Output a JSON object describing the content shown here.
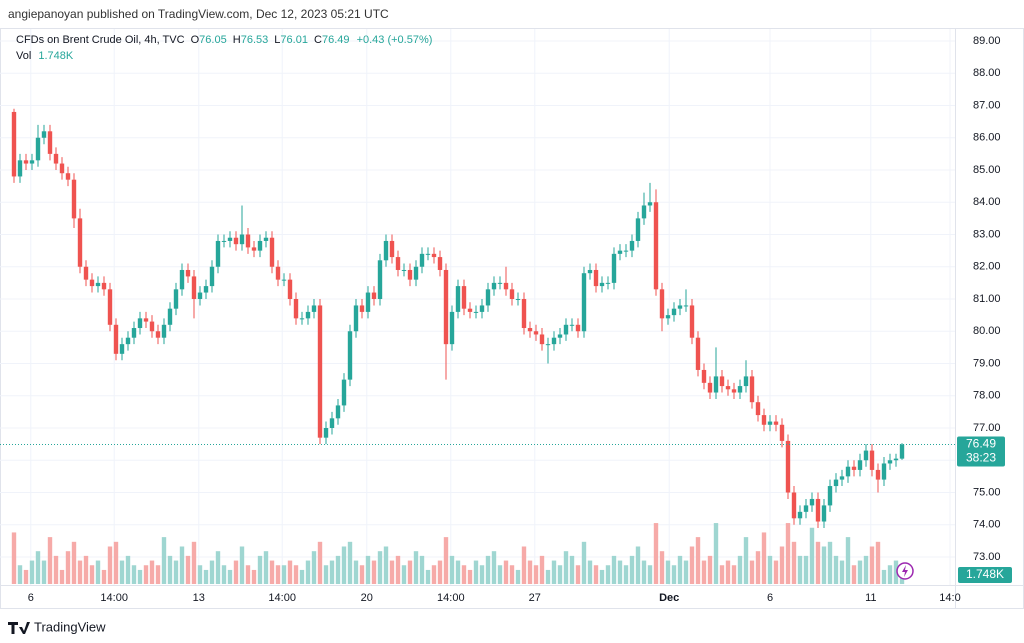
{
  "header": "angiepanoyan published on TradingView.com, Dec 12, 2023 05:21 UTC",
  "footer": "TradingView",
  "chart_data": {
    "type": "candlestick",
    "symbol": "CFDs on Brent Crude Oil, 4h, TVC",
    "legend": [
      "O",
      "76.05",
      "H",
      "76.53",
      "L",
      "76.01",
      "C",
      "76.49",
      "+0.43 (+0.57%)"
    ],
    "volume_legend": [
      "Vol",
      "1.748K"
    ],
    "last_price_label": "76.49",
    "countdown": "38:23",
    "last_volume_label": "1.748K",
    "up_color": "#26a69a",
    "down_color": "#ef5350",
    "volume_up_color": "#9fd6d1",
    "volume_down_color": "#f6aaa8",
    "grid": true,
    "ylim": [
      73,
      89
    ],
    "yticks": [
      {
        "value": 73,
        "label": "73.00"
      },
      {
        "value": 74,
        "label": "74.00"
      },
      {
        "value": 75,
        "label": "75.00"
      },
      {
        "value": 76,
        "label": "76.00"
      },
      {
        "value": 77,
        "label": "77.00"
      },
      {
        "value": 78,
        "label": "78.00"
      },
      {
        "value": 79,
        "label": "79.00"
      },
      {
        "value": 80,
        "label": "80.00"
      },
      {
        "value": 81,
        "label": "81.00"
      },
      {
        "value": 82,
        "label": "82.00"
      },
      {
        "value": 83,
        "label": "83.00"
      },
      {
        "value": 84,
        "label": "84.00"
      },
      {
        "value": 85,
        "label": "85.00"
      },
      {
        "value": 86,
        "label": "86.00"
      },
      {
        "value": 87,
        "label": "87.00"
      },
      {
        "value": 88,
        "label": "88.00"
      },
      {
        "value": 89,
        "label": "89.00"
      }
    ],
    "xticks": [
      {
        "value": 2.8,
        "label": "6"
      },
      {
        "value": 16.7,
        "label": "14:00"
      },
      {
        "value": 30.8,
        "label": "13"
      },
      {
        "value": 44.7,
        "label": "14:00"
      },
      {
        "value": 58.8,
        "label": "20"
      },
      {
        "value": 72.8,
        "label": "14:00"
      },
      {
        "value": 86.8,
        "label": "27"
      },
      {
        "value": 109.2,
        "label": "Dec"
      },
      {
        "value": 126,
        "label": "6"
      },
      {
        "value": 142.8,
        "label": "11"
      },
      {
        "value": 156,
        "label": "14:0"
      }
    ],
    "volume_lim": [
      0,
      16
    ],
    "ohlc": [
      [
        86.8,
        86.9,
        84.6,
        84.8
      ],
      [
        84.8,
        85.5,
        84.6,
        85.3
      ],
      [
        85.3,
        85.5,
        85.0,
        85.2
      ],
      [
        85.2,
        85.5,
        85.0,
        85.3
      ],
      [
        85.3,
        86.4,
        85.1,
        86.0
      ],
      [
        86.0,
        86.4,
        85.8,
        86.2
      ],
      [
        86.2,
        86.4,
        85.3,
        85.5
      ],
      [
        85.5,
        85.7,
        85.0,
        85.2
      ],
      [
        85.2,
        85.4,
        84.7,
        84.9
      ],
      [
        84.9,
        85.1,
        84.5,
        84.7
      ],
      [
        84.7,
        84.9,
        83.2,
        83.5
      ],
      [
        83.5,
        83.8,
        81.8,
        82.0
      ],
      [
        82.0,
        82.2,
        81.4,
        81.6
      ],
      [
        81.6,
        81.8,
        81.2,
        81.4
      ],
      [
        81.4,
        81.7,
        81.2,
        81.5
      ],
      [
        81.5,
        81.7,
        81.1,
        81.3
      ],
      [
        81.3,
        81.5,
        80.0,
        80.2
      ],
      [
        80.2,
        80.4,
        79.1,
        79.3
      ],
      [
        79.3,
        79.8,
        79.1,
        79.6
      ],
      [
        79.6,
        80.0,
        79.4,
        79.8
      ],
      [
        79.8,
        80.3,
        79.6,
        80.1
      ],
      [
        80.1,
        80.6,
        79.9,
        80.4
      ],
      [
        80.4,
        80.6,
        80.1,
        80.3
      ],
      [
        80.3,
        80.5,
        79.8,
        80.0
      ],
      [
        80.0,
        80.2,
        79.6,
        79.8
      ],
      [
        79.8,
        80.4,
        79.6,
        80.2
      ],
      [
        80.2,
        80.9,
        80.0,
        80.7
      ],
      [
        80.7,
        81.5,
        80.5,
        81.3
      ],
      [
        81.3,
        82.1,
        81.1,
        81.9
      ],
      [
        81.9,
        82.1,
        81.5,
        81.7
      ],
      [
        81.7,
        81.9,
        80.4,
        81.0
      ],
      [
        81.0,
        81.4,
        80.8,
        81.2
      ],
      [
        81.2,
        81.6,
        81.0,
        81.4
      ],
      [
        81.4,
        82.2,
        81.2,
        82.0
      ],
      [
        82.0,
        83.0,
        81.8,
        82.8
      ],
      [
        82.8,
        83.0,
        82.6,
        82.8
      ],
      [
        82.8,
        83.1,
        82.6,
        82.9
      ],
      [
        82.9,
        83.1,
        82.5,
        82.7
      ],
      [
        82.7,
        83.9,
        82.5,
        83.0
      ],
      [
        83.0,
        83.2,
        82.4,
        82.6
      ],
      [
        82.6,
        82.8,
        82.3,
        82.5
      ],
      [
        82.5,
        83.0,
        82.3,
        82.8
      ],
      [
        82.8,
        83.1,
        82.6,
        82.9
      ],
      [
        82.9,
        83.1,
        81.8,
        82.0
      ],
      [
        82.0,
        82.2,
        81.4,
        81.6
      ],
      [
        81.6,
        81.8,
        81.4,
        81.6
      ],
      [
        81.6,
        81.8,
        80.8,
        81.0
      ],
      [
        81.0,
        81.2,
        80.2,
        80.4
      ],
      [
        80.4,
        80.6,
        80.2,
        80.4
      ],
      [
        80.4,
        80.8,
        80.2,
        80.6
      ],
      [
        80.6,
        81.0,
        80.4,
        80.8
      ],
      [
        80.8,
        81.0,
        76.5,
        76.7
      ],
      [
        76.7,
        77.2,
        76.5,
        77.0
      ],
      [
        77.0,
        77.5,
        76.8,
        77.3
      ],
      [
        77.3,
        77.9,
        77.1,
        77.7
      ],
      [
        77.7,
        78.7,
        77.5,
        78.5
      ],
      [
        78.5,
        80.2,
        78.3,
        80.0
      ],
      [
        80.0,
        81.0,
        79.8,
        80.8
      ],
      [
        80.8,
        81.0,
        80.4,
        80.6
      ],
      [
        80.6,
        81.4,
        80.4,
        81.2
      ],
      [
        81.2,
        81.4,
        80.8,
        81.0
      ],
      [
        81.0,
        82.4,
        80.8,
        82.2
      ],
      [
        82.2,
        83.0,
        82.0,
        82.8
      ],
      [
        82.8,
        83.0,
        82.1,
        82.3
      ],
      [
        82.3,
        82.5,
        81.7,
        81.9
      ],
      [
        81.9,
        82.1,
        81.7,
        81.9
      ],
      [
        81.9,
        82.1,
        81.4,
        81.6
      ],
      [
        81.6,
        82.2,
        81.4,
        82.0
      ],
      [
        82.0,
        82.6,
        81.8,
        82.4
      ],
      [
        82.4,
        82.6,
        82.2,
        82.4
      ],
      [
        82.4,
        82.6,
        82.1,
        82.3
      ],
      [
        82.3,
        82.5,
        81.7,
        81.9
      ],
      [
        81.9,
        82.1,
        78.5,
        79.6
      ],
      [
        79.6,
        80.8,
        79.4,
        80.6
      ],
      [
        80.6,
        81.6,
        80.4,
        81.4
      ],
      [
        81.4,
        81.6,
        80.5,
        80.7
      ],
      [
        80.7,
        80.9,
        80.4,
        80.6
      ],
      [
        80.6,
        80.8,
        80.4,
        80.6
      ],
      [
        80.6,
        81.0,
        80.4,
        80.8
      ],
      [
        80.8,
        81.5,
        80.6,
        81.3
      ],
      [
        81.3,
        81.7,
        81.1,
        81.5
      ],
      [
        81.5,
        81.7,
        81.3,
        81.5
      ],
      [
        81.5,
        82.0,
        81.1,
        81.3
      ],
      [
        81.3,
        81.5,
        80.8,
        81.0
      ],
      [
        81.0,
        81.2,
        80.8,
        81.0
      ],
      [
        81.0,
        81.2,
        79.9,
        80.1
      ],
      [
        80.1,
        80.3,
        79.8,
        80.0
      ],
      [
        80.0,
        80.2,
        79.7,
        79.9
      ],
      [
        79.9,
        80.1,
        79.4,
        79.6
      ],
      [
        79.6,
        79.8,
        79.0,
        79.6
      ],
      [
        79.6,
        80.0,
        79.4,
        79.8
      ],
      [
        79.8,
        80.1,
        79.6,
        79.9
      ],
      [
        79.9,
        80.4,
        79.7,
        80.2
      ],
      [
        80.2,
        80.4,
        80.0,
        80.2
      ],
      [
        80.2,
        80.4,
        79.8,
        80.0
      ],
      [
        80.0,
        82.0,
        79.8,
        81.8
      ],
      [
        81.8,
        82.1,
        81.6,
        81.9
      ],
      [
        81.9,
        82.1,
        81.2,
        81.4
      ],
      [
        81.4,
        81.7,
        81.2,
        81.5
      ],
      [
        81.5,
        81.7,
        81.3,
        81.5
      ],
      [
        81.5,
        82.6,
        81.3,
        82.4
      ],
      [
        82.4,
        82.7,
        82.2,
        82.5
      ],
      [
        82.5,
        82.7,
        82.3,
        82.5
      ],
      [
        82.5,
        83.0,
        82.3,
        82.8
      ],
      [
        82.8,
        83.7,
        82.6,
        83.5
      ],
      [
        83.5,
        84.3,
        83.3,
        83.9
      ],
      [
        83.9,
        84.6,
        83.7,
        84.0
      ],
      [
        84.0,
        84.4,
        81.1,
        81.3
      ],
      [
        81.3,
        81.5,
        80.0,
        80.4
      ],
      [
        80.4,
        80.7,
        80.2,
        80.5
      ],
      [
        80.5,
        80.9,
        80.3,
        80.7
      ],
      [
        80.7,
        81.0,
        80.5,
        80.8
      ],
      [
        80.8,
        81.3,
        80.6,
        80.8
      ],
      [
        80.8,
        81.0,
        79.6,
        79.8
      ],
      [
        79.8,
        80.0,
        78.6,
        78.8
      ],
      [
        78.8,
        79.0,
        78.2,
        78.4
      ],
      [
        78.4,
        78.6,
        77.9,
        78.1
      ],
      [
        78.1,
        79.5,
        77.9,
        78.6
      ],
      [
        78.6,
        78.8,
        78.1,
        78.3
      ],
      [
        78.3,
        78.5,
        78.0,
        78.2
      ],
      [
        78.2,
        78.4,
        77.9,
        78.1
      ],
      [
        78.1,
        78.5,
        77.9,
        78.3
      ],
      [
        78.3,
        79.1,
        78.1,
        78.6
      ],
      [
        78.6,
        78.8,
        77.6,
        77.8
      ],
      [
        77.8,
        78.0,
        77.2,
        77.4
      ],
      [
        77.4,
        77.6,
        76.9,
        77.1
      ],
      [
        77.1,
        77.4,
        76.9,
        77.2
      ],
      [
        77.2,
        77.4,
        76.9,
        77.1
      ],
      [
        77.1,
        77.3,
        76.4,
        76.6
      ],
      [
        76.6,
        76.8,
        74.8,
        75.0
      ],
      [
        75.0,
        75.2,
        74.0,
        74.2
      ],
      [
        74.2,
        74.6,
        74.0,
        74.4
      ],
      [
        74.4,
        74.8,
        74.2,
        74.6
      ],
      [
        74.6,
        75.0,
        74.4,
        74.8
      ],
      [
        74.8,
        75.0,
        73.9,
        74.1
      ],
      [
        74.1,
        74.8,
        73.9,
        74.6
      ],
      [
        74.6,
        75.4,
        74.4,
        75.2
      ],
      [
        75.2,
        75.6,
        75.0,
        75.4
      ],
      [
        75.4,
        75.7,
        75.2,
        75.5
      ],
      [
        75.5,
        76.0,
        75.3,
        75.8
      ],
      [
        75.8,
        76.0,
        75.5,
        75.7
      ],
      [
        75.7,
        76.2,
        75.5,
        76.0
      ],
      [
        76.0,
        76.5,
        75.8,
        76.3
      ],
      [
        76.3,
        76.5,
        75.5,
        75.7
      ],
      [
        75.7,
        75.9,
        75.0,
        75.4
      ],
      [
        75.4,
        76.1,
        75.2,
        75.9
      ],
      [
        75.9,
        76.2,
        75.7,
        76.0
      ],
      [
        76.0,
        76.2,
        75.8,
        76.05
      ],
      [
        76.05,
        76.53,
        76.01,
        76.49
      ]
    ],
    "volume": [
      11,
      4,
      3,
      5,
      7,
      5,
      10,
      6,
      3,
      7,
      9,
      5,
      6,
      4,
      5,
      3,
      8,
      9,
      5,
      6,
      4,
      3,
      4,
      5,
      4,
      10,
      6,
      5,
      8,
      6,
      9,
      4,
      3,
      5,
      7,
      4,
      3,
      5,
      8,
      4,
      3,
      6,
      7,
      5,
      4,
      4,
      5,
      4,
      3,
      5,
      7,
      9,
      4,
      5,
      6,
      8,
      9,
      5,
      4,
      6,
      5,
      7,
      8,
      5,
      6,
      4,
      5,
      7,
      6,
      3,
      4,
      5,
      10,
      6,
      5,
      4,
      3,
      5,
      4,
      6,
      7,
      4,
      5,
      4,
      3,
      8,
      5,
      4,
      6,
      3,
      5,
      4,
      7,
      6,
      4,
      9,
      5,
      4,
      3,
      4,
      6,
      5,
      4,
      6,
      8,
      5,
      4,
      13,
      7,
      5,
      4,
      6,
      5,
      8,
      10,
      5,
      6,
      13,
      4,
      5,
      4,
      6,
      10,
      5,
      7,
      11,
      6,
      5,
      8,
      13,
      9,
      6,
      6,
      12,
      9,
      8,
      9,
      6,
      5,
      10,
      4,
      5,
      6,
      8,
      9,
      3,
      4,
      5,
      1.748
    ]
  }
}
